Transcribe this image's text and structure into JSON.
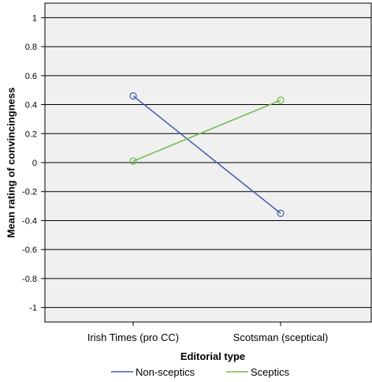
{
  "chart_data": {
    "type": "line",
    "categories": [
      "Irish Times (pro CC)",
      "Scotsman (sceptical)"
    ],
    "series": [
      {
        "name": "Non-sceptics",
        "values": [
          0.46,
          -0.35
        ],
        "color": "#3f5fa8"
      },
      {
        "name": "Sceptics",
        "values": [
          0.01,
          0.43
        ],
        "color": "#6dbb4a"
      }
    ],
    "xlabel": "Editorial type",
    "ylabel": "Mean rating of convincingness",
    "ylim": [
      -1.1,
      1.1
    ],
    "yticks": [
      1,
      0.8,
      0.6,
      0.4,
      0.2,
      0,
      -0.2,
      -0.4,
      -0.6,
      -0.8,
      -1
    ],
    "ytick_labels": [
      "1",
      "0.8",
      "0.6",
      "0.4",
      "0.2",
      "0",
      "-0.2",
      "-0.4",
      "-0.6",
      "-0.8",
      "-1"
    ],
    "grid": true,
    "marker": "open-circle",
    "legend_position": "bottom",
    "plot_background": "#f0f0f0"
  }
}
